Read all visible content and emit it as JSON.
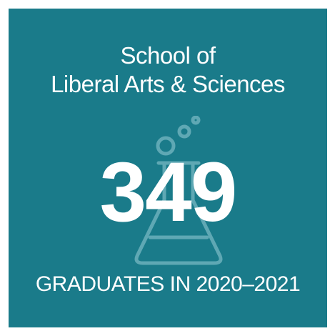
{
  "card": {
    "title_line1": "School of",
    "title_line2": "Liberal Arts & Sciences",
    "count": "349",
    "caption": "GRADUATES IN 2020–2021",
    "background_color": "#1a7b8a",
    "icon": "flask-icon"
  }
}
